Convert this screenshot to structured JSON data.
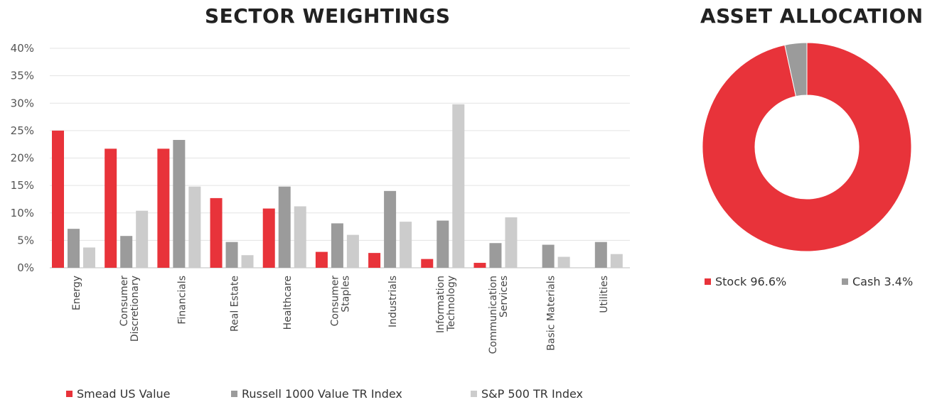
{
  "bar_title": "SECTOR WEIGHTINGS",
  "pie_title": "ASSET ALLOCATION",
  "colors": {
    "smead": "#e8333a",
    "russell": "#9b9b9b",
    "sp500": "#cccccc",
    "stock": "#e8333a",
    "cash": "#9b9b9b"
  },
  "chart_data": [
    {
      "type": "bar",
      "title": "SECTOR WEIGHTINGS",
      "categories": [
        [
          "Energy"
        ],
        [
          "Consumer",
          "Discretionary"
        ],
        [
          "Financials"
        ],
        [
          "Real Estate"
        ],
        [
          "Healthcare"
        ],
        [
          "Consumer",
          "Staples"
        ],
        [
          "Industrials"
        ],
        [
          "Information",
          "Technology"
        ],
        [
          "Communication",
          "Services"
        ],
        [
          "Basic Materials"
        ],
        [
          "Utilities"
        ]
      ],
      "series": [
        {
          "name": "Smead US Value",
          "values": [
            25.0,
            21.7,
            21.7,
            12.7,
            10.8,
            2.9,
            2.7,
            1.6,
            0.9,
            0.0,
            0.0
          ]
        },
        {
          "name": "Russell 1000 Value TR Index",
          "values": [
            7.1,
            5.8,
            23.3,
            4.7,
            14.8,
            8.1,
            14.0,
            8.6,
            4.5,
            4.2,
            4.7
          ]
        },
        {
          "name": "S&P 500 TR Index",
          "values": [
            3.7,
            10.4,
            14.8,
            2.3,
            11.2,
            6.0,
            8.4,
            29.8,
            9.2,
            2.0,
            2.5
          ]
        }
      ],
      "ylim": [
        0,
        40
      ],
      "yticks": [
        "0%",
        "5%",
        "10%",
        "15%",
        "20%",
        "25%",
        "30%",
        "35%",
        "40%"
      ],
      "grid": true,
      "legend": "bottom"
    },
    {
      "type": "pie",
      "title": "ASSET ALLOCATION",
      "donut": true,
      "slices": [
        {
          "label": "Stock 96.6%",
          "value": 96.6
        },
        {
          "label": "Cash 3.4%",
          "value": 3.4
        }
      ],
      "legend": "bottom"
    }
  ]
}
